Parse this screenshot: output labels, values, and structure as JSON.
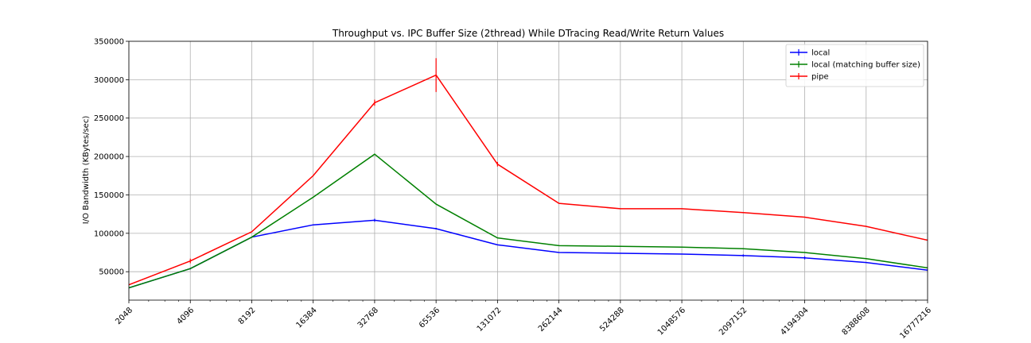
{
  "chart_data": {
    "type": "line",
    "title": "Throughput vs. IPC Buffer Size (2thread) While DTracing Read/Write Return Values",
    "xlabel": "",
    "ylabel": "I/O Bandwidth (KBytes/sec)",
    "x_scale": "log2",
    "x": [
      2048,
      4096,
      8192,
      16384,
      32768,
      65536,
      131072,
      262144,
      524288,
      1048576,
      2097152,
      4194304,
      8388608,
      16777216
    ],
    "x_tick_labels": [
      "2048",
      "4096",
      "8192",
      "16384",
      "32768",
      "65536",
      "131072",
      "262144",
      "524288",
      "1048576",
      "2097152",
      "4194304",
      "8388608",
      "16777216"
    ],
    "xlim": [
      2048,
      16777216
    ],
    "ylim": [
      13000,
      350000
    ],
    "y_ticks": [
      50000,
      100000,
      150000,
      200000,
      250000,
      300000,
      350000
    ],
    "y_tick_labels": [
      "50000",
      "100000",
      "150000",
      "200000",
      "250000",
      "300000",
      "350000"
    ],
    "grid": true,
    "legend_position": "top-right",
    "series": [
      {
        "name": "local",
        "color": "#0000ff",
        "values": [
          29000,
          54000,
          95000,
          111000,
          117000,
          106000,
          85000,
          75000,
          74000,
          73000,
          71000,
          68000,
          62000,
          52000
        ],
        "errors": [
          0,
          1000,
          0,
          0,
          2000,
          1000,
          0,
          0,
          0,
          0,
          1500,
          2000,
          0,
          1500
        ]
      },
      {
        "name": "local (matching buffer size)",
        "color": "#008000",
        "values": [
          29000,
          54000,
          95000,
          147000,
          203000,
          138000,
          94000,
          84000,
          83000,
          82000,
          80000,
          75000,
          67000,
          55000
        ],
        "errors": [
          0,
          0,
          0,
          0,
          0,
          0,
          0,
          0,
          0,
          0,
          0,
          0,
          0,
          0
        ]
      },
      {
        "name": "pipe",
        "color": "#ff0000",
        "values": [
          33000,
          64000,
          102000,
          175000,
          270000,
          306000,
          190000,
          139000,
          132000,
          132000,
          127000,
          121000,
          109000,
          91000
        ],
        "errors": [
          0,
          3000,
          0,
          0,
          4000,
          22000,
          3000,
          0,
          0,
          0,
          0,
          0,
          0,
          0
        ]
      }
    ]
  }
}
